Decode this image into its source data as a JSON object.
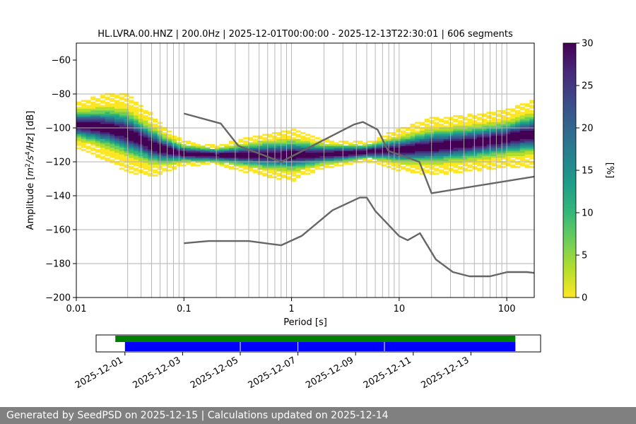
{
  "chart_data": [
    {
      "type": "heatmap",
      "title": "HL.LVRA.00.HNZ | 200.0Hz | 2025-12-01T00:00:00 - 2025-12-13T22:30:01 | 606 segments",
      "xlabel": "Period [s]",
      "ylabel_parts": [
        "Amplitude [",
        "m",
        "2",
        "/",
        "s",
        "4",
        "/",
        "Hz",
        "] [dB]"
      ],
      "xscale": "log",
      "xlim": [
        0.01,
        180
      ],
      "ylim": [
        -200,
        -50
      ],
      "xticks": [
        {
          "value": 0.01,
          "label": "0.01"
        },
        {
          "value": 0.1,
          "label": "0.1"
        },
        {
          "value": 1,
          "label": "1"
        },
        {
          "value": 10,
          "label": "10"
        },
        {
          "value": 100,
          "label": "100"
        }
      ],
      "yticks": [
        {
          "value": -60,
          "label": "−60"
        },
        {
          "value": -80,
          "label": "−80"
        },
        {
          "value": -100,
          "label": "−100"
        },
        {
          "value": -120,
          "label": "−120"
        },
        {
          "value": -140,
          "label": "−140"
        },
        {
          "value": -160,
          "label": "−160"
        },
        {
          "value": -180,
          "label": "−180"
        },
        {
          "value": -200,
          "label": "−200"
        }
      ],
      "grid_periods": [
        0.03,
        0.04,
        0.05,
        0.06,
        0.07,
        0.08,
        0.09,
        0.1,
        0.2,
        0.3,
        0.4,
        0.5,
        0.6,
        0.7,
        0.8,
        0.9,
        1,
        2,
        3,
        4,
        5,
        6,
        7,
        8,
        9,
        10,
        20,
        30,
        40,
        50,
        60,
        70,
        80,
        90,
        100
      ],
      "grid_db": [
        -80,
        -100,
        -120,
        -140,
        -160,
        -180
      ],
      "colorbar": {
        "label": "[%]",
        "min": 0,
        "max": 30,
        "ticks": [
          {
            "value": 0,
            "label": "0"
          },
          {
            "value": 5,
            "label": "5"
          },
          {
            "value": 10,
            "label": "10"
          },
          {
            "value": 15,
            "label": "15"
          },
          {
            "value": 20,
            "label": "20"
          },
          {
            "value": 25,
            "label": "25"
          },
          {
            "value": 30,
            "label": "30"
          }
        ],
        "colors": [
          "#fde725",
          "#b5de2b",
          "#6ece58",
          "#35b779",
          "#1f9e89",
          "#26828e",
          "#31688e",
          "#3e4989",
          "#482878",
          "#440154"
        ]
      },
      "psd_mode": [
        [
          0.01,
          -98
        ],
        [
          0.015,
          -99
        ],
        [
          0.02,
          -100
        ],
        [
          0.03,
          -103
        ],
        [
          0.04,
          -107
        ],
        [
          0.05,
          -110
        ],
        [
          0.06,
          -112
        ],
        [
          0.08,
          -114
        ],
        [
          0.1,
          -115
        ],
        [
          0.2,
          -116
        ],
        [
          0.5,
          -116
        ],
        [
          1,
          -116
        ],
        [
          2,
          -115.5
        ],
        [
          3,
          -115
        ],
        [
          5,
          -114
        ],
        [
          8,
          -113
        ],
        [
          10,
          -113
        ],
        [
          20,
          -111
        ],
        [
          30,
          -110
        ],
        [
          50,
          -108.5
        ],
        [
          80,
          -107
        ],
        [
          100,
          -106
        ],
        [
          150,
          -104
        ],
        [
          180,
          -103.5
        ]
      ],
      "psd_spread": [
        [
          0.01,
          8
        ],
        [
          0.02,
          12
        ],
        [
          0.03,
          14
        ],
        [
          0.05,
          11
        ],
        [
          0.08,
          6
        ],
        [
          0.1,
          4
        ],
        [
          0.2,
          3
        ],
        [
          0.5,
          7
        ],
        [
          1,
          9
        ],
        [
          2,
          5
        ],
        [
          5,
          3
        ],
        [
          10,
          7
        ],
        [
          20,
          10
        ],
        [
          50,
          10
        ],
        [
          100,
          10
        ],
        [
          180,
          12
        ]
      ],
      "series": [
        {
          "role": "high-noise-model",
          "color": "#666666",
          "x": [
            0.1,
            0.22,
            0.32,
            0.8,
            3.8,
            4.6,
            6.3,
            7.9,
            15.4,
            20,
            180
          ],
          "y": [
            -91.5,
            -97.4,
            -110.5,
            -120,
            -98,
            -96.5,
            -101,
            -113.5,
            -120,
            -138.5,
            -128.7
          ]
        },
        {
          "role": "low-noise-model",
          "color": "#666666",
          "x": [
            0.1,
            0.17,
            0.4,
            0.8,
            1.24,
            2.4,
            4.3,
            5,
            6,
            10,
            12,
            15.6,
            21.9,
            31.6,
            45,
            70,
            101,
            154,
            180
          ],
          "y": [
            -168,
            -166.7,
            -166.7,
            -169.2,
            -163.7,
            -148.6,
            -141.1,
            -141.1,
            -149,
            -163.8,
            -166.2,
            -162.1,
            -177.5,
            -185,
            -187.5,
            -187.5,
            -185,
            -185,
            -185.5
          ]
        }
      ]
    },
    {
      "type": "timeline",
      "xlim": [
        "2025-11-30T00:00:00",
        "2025-12-15T10:00:00"
      ],
      "xticks": [
        "2025-12-01",
        "2025-12-03",
        "2025-12-05",
        "2025-12-07",
        "2025-12-09",
        "2025-12-11",
        "2025-12-13"
      ],
      "bars": [
        {
          "role": "data-availability",
          "color": "#008000",
          "segments": [
            [
              "2025-11-30T16:00:00",
              "2025-12-14T13:00:00"
            ]
          ]
        },
        {
          "role": "psd-segments",
          "color": "#0000ff",
          "segments": [
            [
              "2025-12-01T00:00:00",
              "2025-12-14T13:00:00"
            ]
          ],
          "gaps": [
            "2025-12-05T00:00:00",
            "2025-12-07T00:00:00",
            "2025-12-10T00:00:00"
          ]
        }
      ]
    }
  ],
  "footer": "Generated by SeedPSD on 2025-12-15 | Calculations updated on 2025-12-14"
}
